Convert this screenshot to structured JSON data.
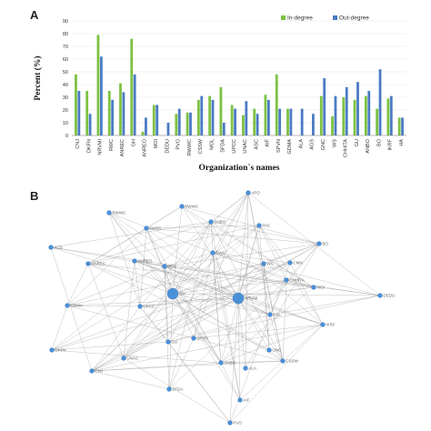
{
  "panels": {
    "a_letter": "A",
    "b_letter": "B"
  },
  "chart_data": {
    "type": "bar",
    "title": "",
    "xlabel": "Organization`s names",
    "ylabel": "Percent (%)",
    "ylim": [
      0,
      90
    ],
    "yticks": [
      0,
      10,
      20,
      30,
      40,
      50,
      60,
      70,
      80,
      90
    ],
    "grid": true,
    "legend_position": "top-right",
    "categories": [
      "CNJ",
      "DKFN",
      "NRVMI",
      "RWC",
      "ANREC",
      "GH",
      "ANREO",
      "MOI",
      "DEDU",
      "PVO",
      "RWWC",
      "CSSW",
      "MOL",
      "SFDA",
      "UPCC",
      "UNAC",
      "ASC",
      "AIF",
      "SPVN",
      "GDMA",
      "ALA",
      "AGS",
      "GNC",
      "WS",
      "CHHITA",
      "GU",
      "ANBO",
      "BO",
      "IKRF",
      "HA"
    ],
    "series": [
      {
        "name": "In-degree",
        "color": "#7dc242",
        "values": [
          48,
          35,
          79,
          35,
          41,
          76,
          3,
          24,
          0,
          17,
          18,
          28,
          31,
          38,
          24,
          16,
          21,
          32,
          48,
          21,
          0,
          0,
          31,
          15,
          30,
          28,
          31,
          21,
          29,
          14
        ]
      },
      {
        "name": "Out-degree",
        "color": "#4a7bc4",
        "values": [
          35,
          17,
          62,
          28,
          34,
          48,
          14,
          24,
          10,
          21,
          18,
          31,
          28,
          10,
          21,
          27,
          17,
          28,
          21,
          21,
          21,
          17,
          45,
          31,
          38,
          42,
          35,
          52,
          31,
          14
        ]
      }
    ]
  },
  "network": {
    "nodes": [
      {
        "id": "APO",
        "label": "APO",
        "big": false
      },
      {
        "id": "RWWC",
        "label": "RWWC",
        "big": false
      },
      {
        "id": "RWWC2",
        "label": "RWWC",
        "big": false
      },
      {
        "id": "SNBO",
        "label": "SNBO",
        "big": false
      },
      {
        "id": "PAC",
        "label": "PAC",
        "big": false
      },
      {
        "id": "GH",
        "label": "GH",
        "big": true
      },
      {
        "id": "GUSS",
        "label": "GUSS",
        "big": false
      },
      {
        "id": "RWC",
        "label": "RWC",
        "big": false
      },
      {
        "id": "CMN",
        "label": "CMN",
        "big": false
      },
      {
        "id": "AGS",
        "label": "AGS",
        "big": false
      },
      {
        "id": "ANREC",
        "label": "ANREC",
        "big": false
      },
      {
        "id": "ANREO",
        "label": "ANREO",
        "big": false
      },
      {
        "id": "WS",
        "label": "WS",
        "big": false
      },
      {
        "id": "CHHITA",
        "label": "CHHITA",
        "big": false
      },
      {
        "id": "DEDU",
        "label": "DEDU",
        "big": false
      },
      {
        "id": "GDMA",
        "label": "GDMA",
        "big": false
      },
      {
        "id": "NRVMI",
        "label": "NRVMI",
        "big": true
      },
      {
        "id": "UPCC",
        "label": "UPCC",
        "big": false
      },
      {
        "id": "CSSW",
        "label": "CSSW",
        "big": false
      },
      {
        "id": "SFDA",
        "label": "SFDA",
        "big": false
      },
      {
        "id": "MOI",
        "label": "MOI",
        "big": false
      },
      {
        "id": "SPVN",
        "label": "SPVN",
        "big": false
      },
      {
        "id": "ASL",
        "label": "ASL",
        "big": false
      },
      {
        "id": "IKRF",
        "label": "IKRF",
        "big": false
      },
      {
        "id": "BO",
        "label": "BO",
        "big": false
      },
      {
        "id": "DKFN",
        "label": "DKFN",
        "big": false
      },
      {
        "id": "ANBO",
        "label": "ANBO",
        "big": false
      },
      {
        "id": "GNC",
        "label": "GNC",
        "big": false
      },
      {
        "id": "ALA",
        "label": "ALA",
        "big": false
      },
      {
        "id": "UNAC",
        "label": "UNAC",
        "big": false
      },
      {
        "id": "MOL",
        "label": "MOL",
        "big": false
      },
      {
        "id": "CNJ",
        "label": "CNJ",
        "big": false
      },
      {
        "id": "PVO",
        "label": "PVO",
        "big": false
      },
      {
        "id": "GU",
        "label": "GU",
        "big": false
      },
      {
        "id": "AIF",
        "label": "AIF",
        "big": false
      }
    ]
  }
}
